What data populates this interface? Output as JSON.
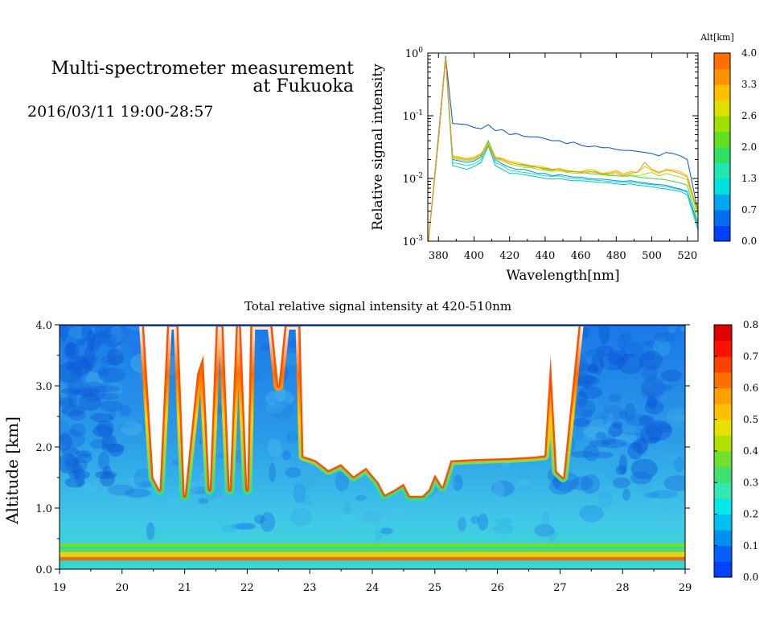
{
  "header": {
    "title_line1": "Multi-spectrometer measurement",
    "title_line2": "at Fukuoka",
    "date_range": "2016/03/11 19:00-28:57"
  },
  "chart_data": [
    {
      "type": "line",
      "title": "",
      "xlabel": "Wavelength[nm]",
      "ylabel": "Relative signal intensity",
      "xlim": [
        374,
        526
      ],
      "ylim": [
        0.001,
        1
      ],
      "yscale": "log",
      "x_ticks": [
        "380",
        "400",
        "420",
        "440",
        "460",
        "480",
        "500",
        "520"
      ],
      "y_ticks": [
        {
          "base": "10",
          "exp": "-3"
        },
        {
          "base": "10",
          "exp": "-2"
        },
        {
          "base": "10",
          "exp": "-1"
        },
        {
          "base": "10",
          "exp": "0"
        }
      ],
      "colorbar": {
        "label": "Alt[km]",
        "ticks": [
          "0.0",
          "0.7",
          "1.3",
          "2.0",
          "2.6",
          "3.3",
          "4.0"
        ],
        "colors": [
          "#0040ff",
          "#0070f0",
          "#00a8f0",
          "#00e0e0",
          "#20e8b0",
          "#30e060",
          "#60e020",
          "#a0e000",
          "#e0e000",
          "#ffc000",
          "#ff9000",
          "#ff7000"
        ]
      },
      "x": [
        374,
        380,
        384,
        388,
        392,
        396,
        400,
        404,
        408,
        412,
        416,
        420,
        424,
        428,
        432,
        436,
        440,
        444,
        448,
        452,
        456,
        460,
        464,
        468,
        472,
        476,
        480,
        484,
        488,
        492,
        496,
        500,
        504,
        508,
        512,
        516,
        520,
        526
      ],
      "series": [
        {
          "color": "#0050e0",
          "values": [
            0.0008,
            0.05,
            0.9,
            0.075,
            0.074,
            0.072,
            0.065,
            0.062,
            0.072,
            0.058,
            0.06,
            0.05,
            0.052,
            0.047,
            0.046,
            0.046,
            0.043,
            0.04,
            0.04,
            0.036,
            0.038,
            0.034,
            0.032,
            0.033,
            0.031,
            0.031,
            0.029,
            0.028,
            0.028,
            0.027,
            0.026,
            0.025,
            0.023,
            0.026,
            0.025,
            0.023,
            0.02,
            0.003
          ]
        },
        {
          "color": "#0090f0",
          "values": [
            0.0008,
            0.045,
            0.85,
            0.02,
            0.019,
            0.018,
            0.019,
            0.022,
            0.038,
            0.02,
            0.017,
            0.015,
            0.014,
            0.014,
            0.013,
            0.012,
            0.012,
            0.011,
            0.0115,
            0.011,
            0.0105,
            0.0105,
            0.01,
            0.0098,
            0.0098,
            0.0095,
            0.0092,
            0.009,
            0.0092,
            0.0088,
            0.0085,
            0.0082,
            0.008,
            0.0078,
            0.0072,
            0.0068,
            0.0062,
            0.0018
          ]
        },
        {
          "color": "#00c0e0",
          "values": [
            0.0008,
            0.04,
            0.8,
            0.016,
            0.015,
            0.014,
            0.0155,
            0.018,
            0.033,
            0.016,
            0.014,
            0.012,
            0.012,
            0.0115,
            0.011,
            0.0105,
            0.01,
            0.0098,
            0.01,
            0.0095,
            0.0092,
            0.0092,
            0.009,
            0.0088,
            0.0086,
            0.0085,
            0.0082,
            0.008,
            0.0082,
            0.0078,
            0.0076,
            0.0074,
            0.007,
            0.0068,
            0.0065,
            0.0062,
            0.0055,
            0.0015
          ]
        },
        {
          "color": "#20e0b0",
          "values": [
            0.0008,
            0.042,
            0.82,
            0.018,
            0.017,
            0.016,
            0.017,
            0.02,
            0.035,
            0.018,
            0.016,
            0.0135,
            0.013,
            0.0125,
            0.012,
            0.0115,
            0.011,
            0.0108,
            0.011,
            0.0102,
            0.01,
            0.0098,
            0.0096,
            0.0094,
            0.0092,
            0.009,
            0.0088,
            0.0086,
            0.0088,
            0.0084,
            0.0082,
            0.008,
            0.0076,
            0.0074,
            0.007,
            0.0066,
            0.006,
            0.0016
          ]
        },
        {
          "color": "#40d840",
          "values": [
            0.0008,
            0.044,
            0.84,
            0.022,
            0.021,
            0.02,
            0.021,
            0.024,
            0.04,
            0.022,
            0.02,
            0.018,
            0.017,
            0.016,
            0.0155,
            0.015,
            0.014,
            0.0135,
            0.014,
            0.013,
            0.0128,
            0.0125,
            0.012,
            0.0118,
            0.0115,
            0.0112,
            0.011,
            0.0108,
            0.011,
            0.0105,
            0.0102,
            0.01,
            0.0098,
            0.0095,
            0.009,
            0.0085,
            0.0078,
            0.002
          ]
        },
        {
          "color": "#a0e000",
          "values": [
            0.0008,
            0.044,
            0.84,
            0.021,
            0.02,
            0.019,
            0.02,
            0.023,
            0.036,
            0.021,
            0.019,
            0.017,
            0.016,
            0.015,
            0.015,
            0.014,
            0.0135,
            0.013,
            0.0132,
            0.0125,
            0.0122,
            0.012,
            0.0125,
            0.013,
            0.0118,
            0.0115,
            0.012,
            0.0108,
            0.0115,
            0.011,
            0.0118,
            0.0125,
            0.011,
            0.012,
            0.0112,
            0.0105,
            0.0095,
            0.0025
          ]
        },
        {
          "color": "#ffc000",
          "values": [
            0.0008,
            0.043,
            0.83,
            0.023,
            0.022,
            0.021,
            0.022,
            0.025,
            0.037,
            0.022,
            0.021,
            0.019,
            0.018,
            0.017,
            0.016,
            0.016,
            0.015,
            0.014,
            0.0145,
            0.0135,
            0.013,
            0.0128,
            0.014,
            0.0135,
            0.012,
            0.0125,
            0.0135,
            0.0118,
            0.013,
            0.0125,
            0.0155,
            0.0135,
            0.012,
            0.014,
            0.0138,
            0.0128,
            0.011,
            0.003
          ]
        },
        {
          "color": "#ff9000",
          "values": [
            0.0008,
            0.043,
            0.83,
            0.022,
            0.021,
            0.02,
            0.021,
            0.024,
            0.034,
            0.021,
            0.02,
            0.018,
            0.017,
            0.0165,
            0.016,
            0.015,
            0.0145,
            0.014,
            0.0138,
            0.0132,
            0.013,
            0.0125,
            0.0132,
            0.0125,
            0.0118,
            0.012,
            0.0128,
            0.0112,
            0.0122,
            0.0125,
            0.018,
            0.014,
            0.0125,
            0.0135,
            0.013,
            0.012,
            0.0105,
            0.0028
          ]
        }
      ]
    },
    {
      "type": "heatmap",
      "title": "Total relative signal intensity at 420-510nm",
      "xlabel": "",
      "ylabel": "Altitude [km]",
      "xlim": [
        19,
        29
      ],
      "ylim": [
        0,
        4
      ],
      "x_ticks": [
        "19",
        "20",
        "21",
        "22",
        "23",
        "24",
        "25",
        "26",
        "27",
        "28",
        "29"
      ],
      "y_ticks": [
        "0.0",
        "1.0",
        "2.0",
        "3.0",
        "4.0"
      ],
      "colorbar": {
        "ticks": [
          "0.0",
          "0.1",
          "0.2",
          "0.3",
          "0.4",
          "0.5",
          "0.6",
          "0.7",
          "0.8"
        ],
        "colors": [
          "#0040ff",
          "#0060f8",
          "#0090f0",
          "#00c0f0",
          "#00e8e8",
          "#30e8b0",
          "#40e070",
          "#70e030",
          "#b0e000",
          "#e8e000",
          "#ffc000",
          "#ffa000",
          "#ff7000",
          "#ff4000",
          "#ff1000",
          "#e00000"
        ]
      },
      "cloud_base_km": [
        [
          20.35,
          4.0
        ],
        [
          20.5,
          1.5
        ],
        [
          20.6,
          1.3
        ],
        [
          20.72,
          4.0
        ],
        [
          20.9,
          4.0
        ],
        [
          21.0,
          1.2
        ],
        [
          21.2,
          3.2
        ],
        [
          21.3,
          3.5
        ],
        [
          21.4,
          1.3
        ],
        [
          21.5,
          4.0
        ],
        [
          21.62,
          4.0
        ],
        [
          21.72,
          1.3
        ],
        [
          21.82,
          4.0
        ],
        [
          21.9,
          4.0
        ],
        [
          22.0,
          1.3
        ],
        [
          22.05,
          4.0
        ],
        [
          22.4,
          4.0
        ],
        [
          22.5,
          3.0
        ],
        [
          22.6,
          4.0
        ],
        [
          22.85,
          4.0
        ],
        [
          22.9,
          1.85
        ],
        [
          23.1,
          1.78
        ],
        [
          23.3,
          1.62
        ],
        [
          23.5,
          1.72
        ],
        [
          23.7,
          1.52
        ],
        [
          23.9,
          1.66
        ],
        [
          24.1,
          1.42
        ],
        [
          24.2,
          1.22
        ],
        [
          24.35,
          1.3
        ],
        [
          24.5,
          1.4
        ],
        [
          24.6,
          1.2
        ],
        [
          24.8,
          1.2
        ],
        [
          24.9,
          1.3
        ],
        [
          25.0,
          1.55
        ],
        [
          25.12,
          1.35
        ],
        [
          25.25,
          1.78
        ],
        [
          25.6,
          1.8
        ],
        [
          26.2,
          1.82
        ],
        [
          26.55,
          1.84
        ],
        [
          26.75,
          1.86
        ],
        [
          26.85,
          3.5
        ],
        [
          26.95,
          1.6
        ],
        [
          27.05,
          1.5
        ],
        [
          27.15,
          2.5
        ],
        [
          27.3,
          4.0
        ]
      ]
    }
  ]
}
